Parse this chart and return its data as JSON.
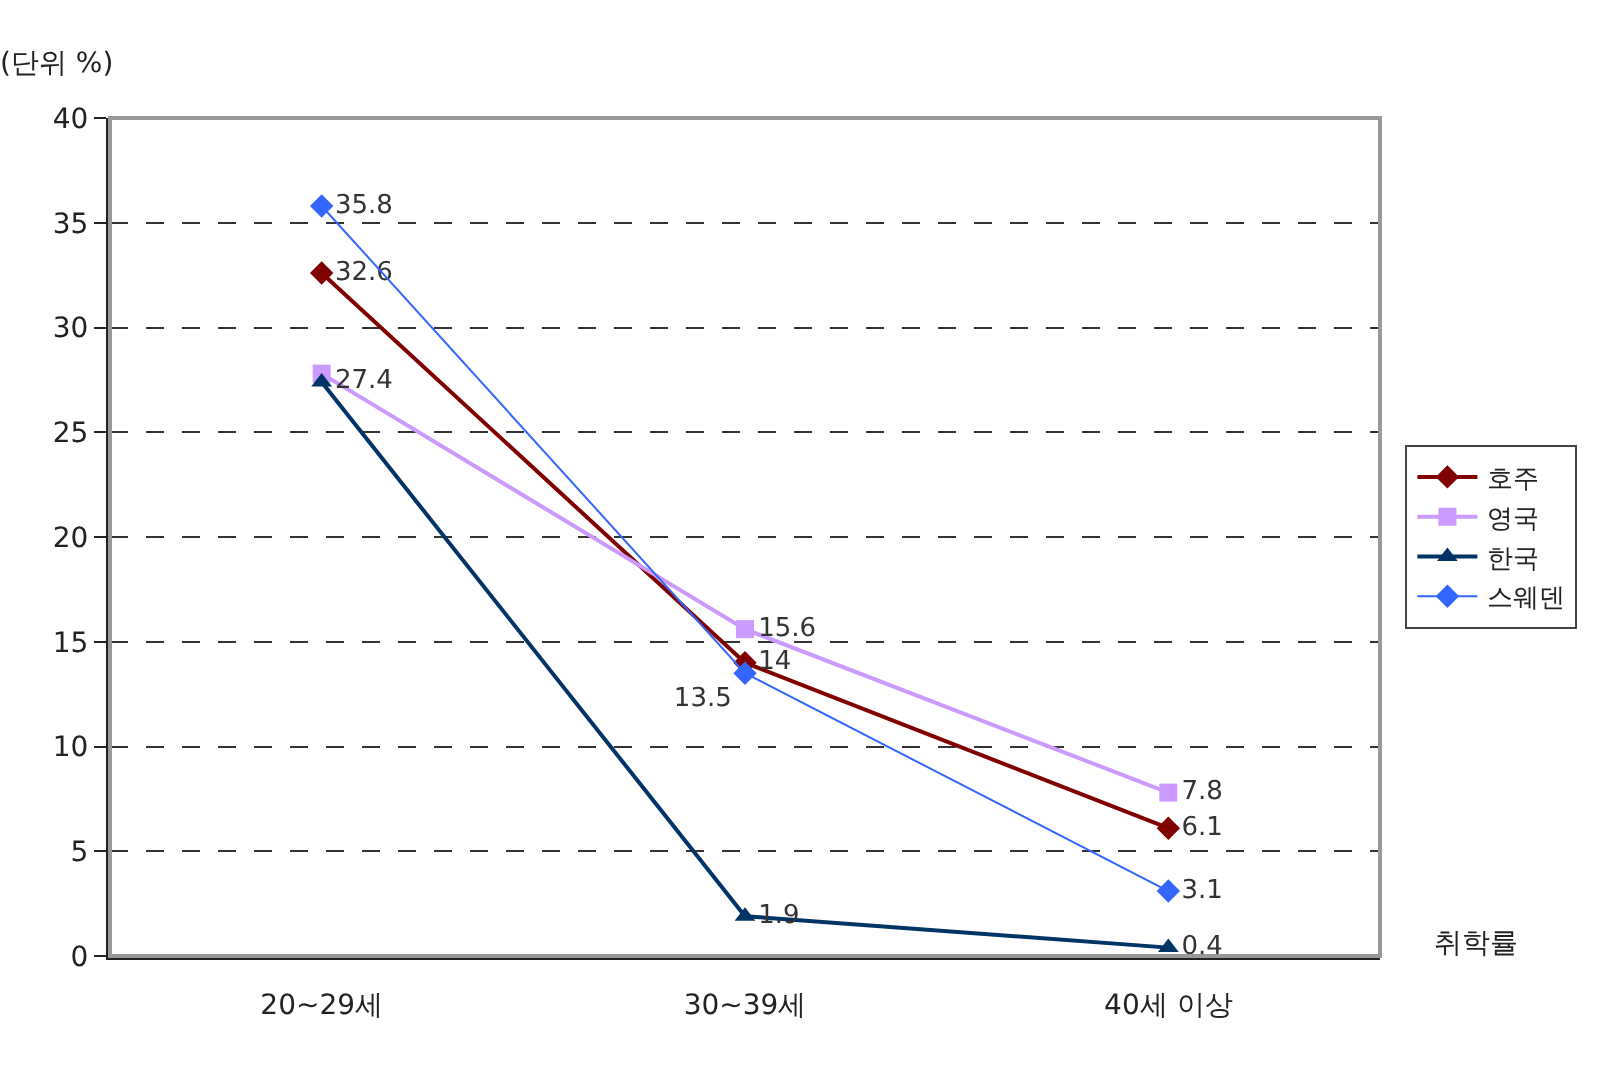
{
  "chart_data": {
    "type": "line",
    "ylabel": "(단위 %)",
    "xlabel": "취학률",
    "categories": [
      "20~29세",
      "30~39세",
      "40세 이상"
    ],
    "series": [
      {
        "name": "호주",
        "color": "#800000",
        "marker": "diamond",
        "values": [
          32.6,
          14,
          6.1
        ],
        "value_labels": [
          "32.6",
          "14",
          "6.1"
        ]
      },
      {
        "name": "영국",
        "color": "#cc99ff",
        "marker": "square",
        "values": [
          27.8,
          15.6,
          7.8
        ],
        "value_labels": [
          null,
          "15.6",
          "7.8"
        ]
      },
      {
        "name": "한국",
        "color": "#003366",
        "marker": "triangle",
        "values": [
          27.4,
          1.9,
          0.4
        ],
        "value_labels": [
          "27.4",
          "1.9",
          "0.4"
        ]
      },
      {
        "name": "스웨덴",
        "color": "#3366ff",
        "marker": "diamond",
        "values": [
          35.8,
          13.5,
          3.1
        ],
        "value_labels": [
          "35.8",
          "13.5",
          "3.1"
        ]
      }
    ],
    "ylim": [
      0,
      40
    ],
    "yticks": [
      0,
      5,
      10,
      15,
      20,
      25,
      30,
      35,
      40
    ],
    "grid": "y",
    "legend": "right",
    "line_style": "solid"
  }
}
